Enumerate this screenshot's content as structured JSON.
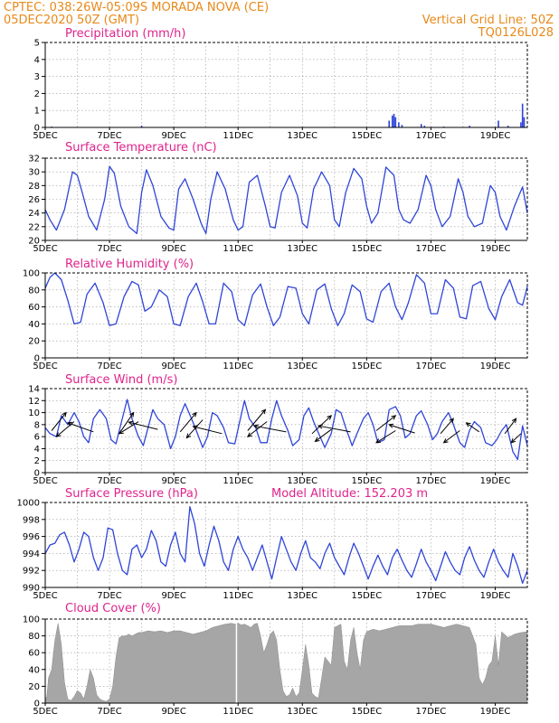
{
  "header": {
    "line1_left": "CPTEC:   038:26W-05:09S   MORADA NOVA (CE)",
    "line2_left": "05DEC2020 50Z (GMT)",
    "line2_right": "Vertical Grid Line: 50Z",
    "line3_right": "TQ0126L028",
    "model_altitude": "Model Altitude: 152.203 m"
  },
  "colors": {
    "header": "#e8891a",
    "panel_title": "#e0238c",
    "line": "#2f45d8",
    "cloud": "#a6a6a6",
    "wind_arrow": "#000000"
  },
  "x_axis": {
    "day_start": 5,
    "day_end": 20,
    "tick_labels": [
      "5DEC",
      "7DEC",
      "9DEC",
      "11DEC",
      "13DEC",
      "15DEC",
      "17DEC",
      "19DEC"
    ]
  },
  "chart_data": [
    {
      "type": "bar",
      "title": "Precipitation (mm/h)",
      "ylim": [
        0,
        5
      ],
      "yticks": [
        "0",
        "1",
        "2",
        "3",
        "4",
        "5"
      ],
      "x_days": [
        5.2,
        8.0,
        15.7,
        15.8,
        15.85,
        15.9,
        16.0,
        16.1,
        16.7,
        16.8,
        17.4,
        18.2,
        19.1,
        19.4,
        19.8,
        19.85,
        19.9
      ],
      "values": [
        0.05,
        0.1,
        0.4,
        0.7,
        0.8,
        0.6,
        0.3,
        0.15,
        0.2,
        0.1,
        0.05,
        0.1,
        0.4,
        0.1,
        0.3,
        1.4,
        0.6
      ]
    },
    {
      "type": "line",
      "title": "Surface Temperature (nC)",
      "ylim": [
        20,
        32
      ],
      "yticks": [
        "20",
        "22",
        "24",
        "26",
        "28",
        "30",
        "32"
      ],
      "x_days": [
        5.0,
        5.15,
        5.35,
        5.6,
        5.85,
        6.0,
        6.15,
        6.35,
        6.6,
        6.85,
        7.0,
        7.15,
        7.35,
        7.6,
        7.85,
        8.0,
        8.15,
        8.35,
        8.6,
        8.85,
        9.0,
        9.15,
        9.35,
        9.6,
        9.85,
        10.0,
        10.15,
        10.35,
        10.6,
        10.85,
        11.0,
        11.15,
        11.35,
        11.6,
        11.85,
        12.0,
        12.15,
        12.35,
        12.6,
        12.85,
        13.0,
        13.15,
        13.35,
        13.6,
        13.85,
        14.0,
        14.15,
        14.35,
        14.6,
        14.85,
        15.0,
        15.15,
        15.35,
        15.6,
        15.85,
        16.0,
        16.15,
        16.35,
        16.6,
        16.85,
        17.0,
        17.15,
        17.35,
        17.6,
        17.85,
        18.0,
        18.15,
        18.35,
        18.6,
        18.85,
        19.0,
        19.15,
        19.35,
        19.6,
        19.85,
        20.0
      ],
      "values": [
        24.5,
        23.0,
        21.5,
        24.5,
        30.0,
        29.5,
        27.0,
        23.5,
        21.5,
        26.0,
        30.8,
        29.8,
        25.0,
        22.0,
        21.0,
        27.0,
        30.3,
        28.0,
        23.5,
        21.8,
        21.5,
        27.5,
        29.0,
        26.0,
        22.5,
        21.0,
        26.0,
        30.0,
        27.5,
        23.0,
        21.5,
        22.0,
        28.5,
        29.5,
        25.0,
        22.0,
        21.8,
        27.0,
        29.5,
        26.5,
        22.5,
        21.8,
        27.5,
        30.0,
        28.0,
        23.0,
        22.0,
        27.0,
        30.5,
        29.0,
        25.0,
        22.5,
        24.0,
        30.7,
        29.5,
        24.5,
        23.0,
        22.5,
        24.5,
        29.5,
        28.0,
        24.5,
        22.0,
        23.5,
        29.0,
        27.0,
        23.5,
        22.0,
        22.5,
        28.0,
        27.0,
        23.5,
        21.5,
        25.0,
        27.8,
        24.0
      ]
    },
    {
      "type": "line",
      "title": "Relative Humidity (%)",
      "ylim": [
        0,
        100
      ],
      "yticks": [
        "0",
        "20",
        "40",
        "60",
        "80",
        "100"
      ],
      "x_days": [
        5.0,
        5.15,
        5.3,
        5.5,
        5.7,
        5.9,
        6.1,
        6.3,
        6.55,
        6.8,
        7.0,
        7.2,
        7.45,
        7.7,
        7.9,
        8.1,
        8.3,
        8.55,
        8.8,
        9.0,
        9.2,
        9.45,
        9.7,
        9.9,
        10.1,
        10.3,
        10.55,
        10.8,
        11.0,
        11.2,
        11.45,
        11.7,
        11.9,
        12.1,
        12.3,
        12.55,
        12.8,
        13.0,
        13.2,
        13.45,
        13.7,
        13.9,
        14.1,
        14.3,
        14.55,
        14.8,
        15.0,
        15.2,
        15.45,
        15.7,
        15.9,
        16.1,
        16.3,
        16.55,
        16.8,
        17.0,
        17.2,
        17.45,
        17.7,
        17.9,
        18.1,
        18.3,
        18.55,
        18.8,
        19.0,
        19.2,
        19.45,
        19.7,
        19.85,
        20.0
      ],
      "values": [
        82,
        95,
        100,
        92,
        68,
        40,
        42,
        75,
        88,
        65,
        38,
        40,
        72,
        90,
        86,
        55,
        60,
        80,
        72,
        40,
        38,
        72,
        88,
        66,
        40,
        40,
        88,
        78,
        45,
        38,
        74,
        87,
        60,
        38,
        48,
        84,
        82,
        52,
        40,
        80,
        87,
        58,
        38,
        52,
        86,
        78,
        46,
        42,
        78,
        88,
        60,
        45,
        65,
        98,
        88,
        52,
        52,
        92,
        82,
        48,
        46,
        85,
        90,
        58,
        45,
        72,
        92,
        65,
        62,
        84
      ]
    },
    {
      "type": "line",
      "title": "Surface Wind (m/s)",
      "ylim": [
        0,
        14
      ],
      "yticks": [
        "0",
        "2",
        "4",
        "6",
        "8",
        "10",
        "12",
        "14"
      ],
      "x_days": [
        5.0,
        5.15,
        5.35,
        5.5,
        5.7,
        5.9,
        6.05,
        6.2,
        6.35,
        6.5,
        6.7,
        6.9,
        7.05,
        7.2,
        7.35,
        7.55,
        7.7,
        7.9,
        8.05,
        8.2,
        8.35,
        8.5,
        8.7,
        8.9,
        9.05,
        9.2,
        9.35,
        9.55,
        9.7,
        9.9,
        10.05,
        10.2,
        10.35,
        10.55,
        10.7,
        10.9,
        11.05,
        11.2,
        11.35,
        11.55,
        11.7,
        11.9,
        12.05,
        12.2,
        12.35,
        12.55,
        12.7,
        12.9,
        13.05,
        13.2,
        13.35,
        13.55,
        13.7,
        13.9,
        14.05,
        14.2,
        14.35,
        14.55,
        14.7,
        14.9,
        15.05,
        15.2,
        15.35,
        15.55,
        15.7,
        15.9,
        16.05,
        16.2,
        16.35,
        16.55,
        16.7,
        16.9,
        17.05,
        17.2,
        17.35,
        17.55,
        17.7,
        17.9,
        18.05,
        18.2,
        18.35,
        18.55,
        18.7,
        18.9,
        19.05,
        19.2,
        19.35,
        19.55,
        19.7,
        19.85,
        20.0
      ],
      "values": [
        7.5,
        6.5,
        6.0,
        9.5,
        8.0,
        10.0,
        8.5,
        6.0,
        5.0,
        9.0,
        10.5,
        9.0,
        5.5,
        4.8,
        8.0,
        12.2,
        9.0,
        6.0,
        4.5,
        7.5,
        10.5,
        9.0,
        8.0,
        4.0,
        6.0,
        9.5,
        11.5,
        9.0,
        7.0,
        4.2,
        6.0,
        10.0,
        9.5,
        7.5,
        5.0,
        4.8,
        8.5,
        12.0,
        9.0,
        7.5,
        5.0,
        5.0,
        9.0,
        12.0,
        9.5,
        7.0,
        4.5,
        5.5,
        9.5,
        10.8,
        8.5,
        6.0,
        4.2,
        6.5,
        10.5,
        10.0,
        7.5,
        4.5,
        6.5,
        9.0,
        10.0,
        8.0,
        5.0,
        5.5,
        10.5,
        11.0,
        9.5,
        5.8,
        6.5,
        9.5,
        10.3,
        8.0,
        5.5,
        6.5,
        8.5,
        10.0,
        8.0,
        5.0,
        4.2,
        7.0,
        8.5,
        7.5,
        5.0,
        4.5,
        5.5,
        7.0,
        8.0,
        3.5,
        2.2,
        7.8,
        4.5
      ],
      "arrows_x_days": [
        5.2,
        5.9,
        6.5,
        7.3,
        7.9,
        8.5,
        9.2,
        9.9,
        10.5,
        11.3,
        11.9,
        12.5,
        13.3,
        13.9,
        14.5,
        15.3,
        15.9,
        16.5,
        17.3,
        17.9,
        18.5,
        19.3,
        19.8
      ],
      "arrows_y": [
        7.0,
        8.5,
        6.8,
        6.5,
        8.5,
        7.2,
        6.8,
        8.8,
        6.5,
        7.0,
        8.5,
        6.8,
        6.5,
        7.2,
        6.8,
        7.0,
        7.0,
        6.6,
        6.5,
        7.0,
        6.8,
        6.5,
        6.5
      ],
      "arrows_dx_days": [
        0.45,
        -0.55,
        -0.8,
        0.45,
        -0.6,
        -0.9,
        0.5,
        -0.5,
        -0.9,
        0.55,
        -0.6,
        -1.0,
        0.6,
        -0.5,
        -1.0,
        0.6,
        -0.6,
        -0.8,
        0.4,
        -0.5,
        -0.4,
        0.35,
        -0.3
      ],
      "arrows_dy": [
        3.0,
        -2.5,
        1.5,
        3.5,
        -2.0,
        1.2,
        3.2,
        -3.0,
        1.2,
        3.5,
        -2.5,
        1.0,
        3.0,
        -2.0,
        1.0,
        2.5,
        -2.0,
        1.4,
        2.5,
        -2.0,
        1.5,
        2.5,
        -1.5
      ]
    },
    {
      "type": "line",
      "title": "Surface Pressure (hPa)",
      "ylim": [
        990,
        1000
      ],
      "yticks": [
        "990",
        "992",
        "994",
        "996",
        "998",
        "1000"
      ],
      "x_days": [
        5.0,
        5.15,
        5.3,
        5.45,
        5.6,
        5.75,
        5.9,
        6.05,
        6.2,
        6.35,
        6.5,
        6.65,
        6.8,
        6.95,
        7.1,
        7.25,
        7.4,
        7.55,
        7.7,
        7.85,
        8.0,
        8.15,
        8.3,
        8.45,
        8.6,
        8.75,
        8.9,
        9.05,
        9.2,
        9.35,
        9.5,
        9.65,
        9.8,
        9.95,
        10.1,
        10.25,
        10.4,
        10.55,
        10.7,
        10.85,
        11.0,
        11.15,
        11.3,
        11.45,
        11.6,
        11.75,
        11.9,
        12.05,
        12.2,
        12.35,
        12.5,
        12.65,
        12.8,
        12.95,
        13.1,
        13.25,
        13.4,
        13.55,
        13.7,
        13.85,
        14.0,
        14.15,
        14.3,
        14.45,
        14.6,
        14.75,
        14.9,
        15.05,
        15.2,
        15.35,
        15.5,
        15.65,
        15.8,
        15.95,
        16.1,
        16.25,
        16.4,
        16.55,
        16.7,
        16.85,
        17.0,
        17.15,
        17.3,
        17.45,
        17.6,
        17.75,
        17.9,
        18.05,
        18.2,
        18.35,
        18.5,
        18.65,
        18.8,
        18.95,
        19.1,
        19.25,
        19.4,
        19.55,
        19.7,
        19.85,
        20.0
      ],
      "values": [
        994.0,
        995.0,
        995.2,
        996.2,
        996.5,
        995.0,
        993.0,
        994.5,
        996.5,
        996.0,
        993.5,
        992.0,
        993.5,
        997.0,
        996.8,
        994.0,
        992.0,
        991.5,
        994.5,
        995.0,
        993.5,
        994.5,
        996.7,
        995.5,
        993.0,
        992.5,
        995.0,
        996.5,
        994.0,
        993.0,
        999.5,
        997.5,
        994.0,
        992.5,
        995.0,
        997.2,
        995.5,
        993.0,
        992.0,
        994.5,
        996.0,
        994.5,
        993.5,
        992.0,
        993.5,
        995.0,
        993.0,
        991.0,
        993.5,
        996.0,
        994.5,
        993.0,
        992.0,
        994.0,
        995.5,
        993.5,
        993.0,
        992.2,
        994.0,
        995.2,
        993.5,
        992.5,
        991.5,
        993.5,
        995.2,
        994.0,
        992.5,
        991.0,
        992.5,
        993.8,
        992.5,
        991.5,
        993.5,
        994.5,
        993.2,
        992.0,
        991.2,
        992.8,
        994.5,
        993.0,
        992.0,
        990.8,
        992.5,
        994.2,
        993.0,
        992.0,
        991.5,
        993.5,
        994.8,
        993.2,
        992.0,
        991.2,
        993.0,
        994.5,
        993.0,
        992.0,
        991.2,
        994.0,
        992.5,
        990.5,
        992.0
      ]
    },
    {
      "type": "area",
      "title": "Cloud Cover (%)",
      "ylim": [
        0,
        100
      ],
      "yticks": [
        "0",
        "20",
        "40",
        "60",
        "80",
        "100"
      ],
      "x_days": [
        5.0,
        5.05,
        5.1,
        5.2,
        5.3,
        5.4,
        5.5,
        5.6,
        5.7,
        5.8,
        5.9,
        6.0,
        6.1,
        6.2,
        6.3,
        6.4,
        6.5,
        6.6,
        6.7,
        6.8,
        6.9,
        7.0,
        7.1,
        7.2,
        7.3,
        7.4,
        7.5,
        7.6,
        7.7,
        7.8,
        7.9,
        8.0,
        8.2,
        8.4,
        8.6,
        8.8,
        9.0,
        9.2,
        9.4,
        9.6,
        9.8,
        10.0,
        10.2,
        10.4,
        10.6,
        10.8,
        10.9,
        11.0,
        11.1,
        11.2,
        11.3,
        11.4,
        11.5,
        11.6,
        11.7,
        11.8,
        11.9,
        12.0,
        12.1,
        12.2,
        12.3,
        12.4,
        12.5,
        12.6,
        12.7,
        12.8,
        12.9,
        13.0,
        13.1,
        13.2,
        13.3,
        13.4,
        13.5,
        13.6,
        13.7,
        13.8,
        13.9,
        14.0,
        14.1,
        14.2,
        14.3,
        14.4,
        14.5,
        14.6,
        14.7,
        14.8,
        14.9,
        15.0,
        15.2,
        15.4,
        15.6,
        15.8,
        16.0,
        16.2,
        16.4,
        16.6,
        16.8,
        17.0,
        17.2,
        17.4,
        17.6,
        17.8,
        18.0,
        18.2,
        18.4,
        18.5,
        18.6,
        18.7,
        18.8,
        18.9,
        19.0,
        19.1,
        19.2,
        19.4,
        19.6,
        19.8,
        20.0
      ],
      "values": [
        5,
        8,
        30,
        40,
        75,
        95,
        70,
        25,
        5,
        3,
        8,
        15,
        12,
        5,
        20,
        40,
        30,
        10,
        5,
        3,
        2,
        5,
        20,
        55,
        78,
        80,
        80,
        82,
        80,
        82,
        84,
        84,
        86,
        85,
        86,
        84,
        86,
        86,
        84,
        82,
        84,
        86,
        90,
        92,
        94,
        95,
        94,
        95,
        93,
        94,
        92,
        90,
        94,
        95,
        80,
        60,
        70,
        82,
        86,
        75,
        40,
        15,
        8,
        10,
        18,
        8,
        12,
        40,
        70,
        45,
        12,
        8,
        6,
        30,
        55,
        50,
        45,
        90,
        92,
        94,
        50,
        40,
        75,
        90,
        60,
        40,
        75,
        85,
        88,
        86,
        88,
        90,
        92,
        92,
        92,
        94,
        94,
        94,
        92,
        90,
        92,
        94,
        92,
        90,
        70,
        30,
        22,
        30,
        45,
        50,
        80,
        45,
        85,
        78,
        82,
        84,
        85
      ]
    }
  ]
}
